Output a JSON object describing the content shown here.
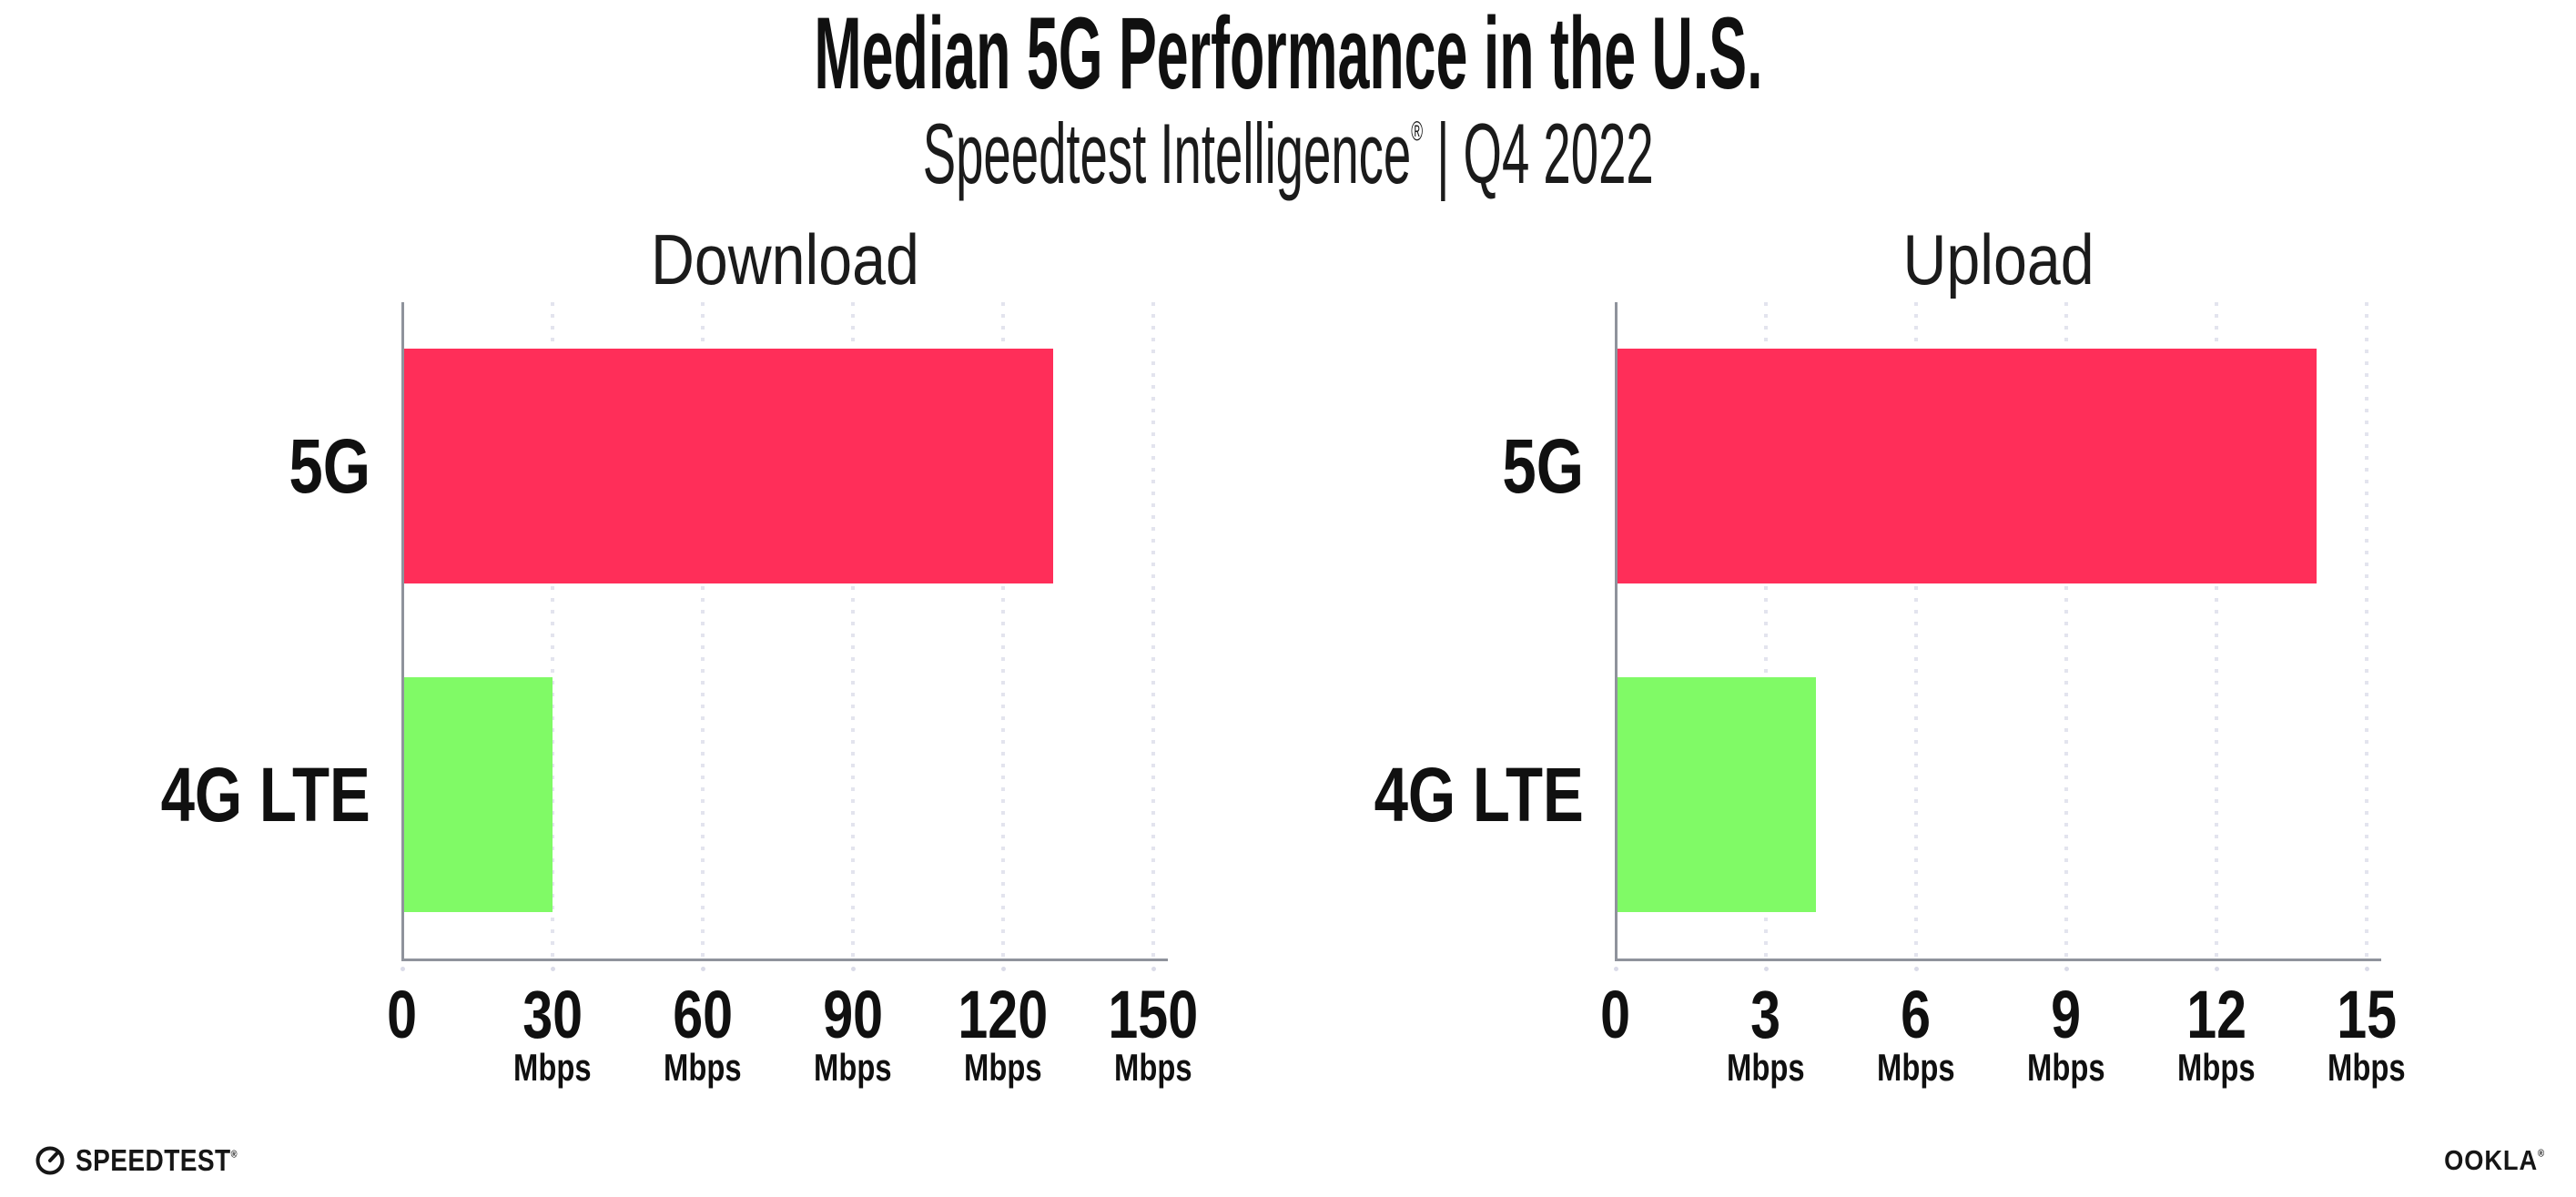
{
  "header": {
    "title": "Median 5G Performance in the U.S.",
    "subtitle_brand": "Speedtest Intelligence",
    "subtitle_reg": "®",
    "subtitle_rest": " | Q4 2022"
  },
  "chart_data": [
    {
      "type": "bar",
      "orientation": "horizontal",
      "title": "Download",
      "categories": [
        "5G",
        "4G LTE"
      ],
      "values": [
        130,
        30
      ],
      "unit": "Mbps",
      "xlabel": "",
      "ylabel": "",
      "xlim": [
        0,
        150
      ],
      "xticks": [
        0,
        30,
        60,
        90,
        120,
        150
      ],
      "bar_colors": [
        "#FF2E59",
        "#80FA66"
      ],
      "grid": "dotted-vertical",
      "legend": "none"
    },
    {
      "type": "bar",
      "orientation": "horizontal",
      "title": "Upload",
      "categories": [
        "5G",
        "4G LTE"
      ],
      "values": [
        14,
        4
      ],
      "unit": "Mbps",
      "xlabel": "",
      "ylabel": "",
      "xlim": [
        0,
        15
      ],
      "xticks": [
        0,
        3,
        6,
        9,
        12,
        15
      ],
      "bar_colors": [
        "#FF2E59",
        "#80FA66"
      ],
      "grid": "dotted-vertical",
      "legend": "none"
    }
  ],
  "colors": {
    "bar_5g": "#FF2E59",
    "bar_4g_lte": "#80FA66",
    "axis_line": "#8f939c",
    "grid_dot": "#e3e4ee",
    "text": "#101010"
  },
  "footer": {
    "speedtest_label": "SPEEDTEST",
    "speedtest_mark": "®",
    "speedtest_icon": "gauge-icon",
    "ookla_label": "OOKLA",
    "ookla_mark": "®"
  }
}
